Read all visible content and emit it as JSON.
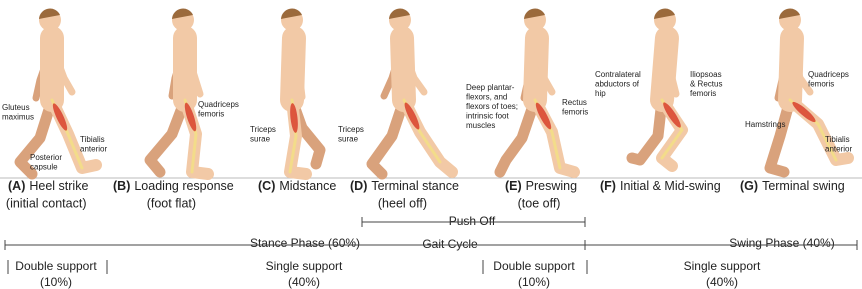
{
  "phases": [
    {
      "letter": "(A)",
      "name": "Heel strike",
      "detail": "(initial contact)",
      "annotations": [
        {
          "lines": [
            "Gluteus",
            "maximus"
          ]
        },
        {
          "lines": [
            "Tibialis",
            "anterior"
          ]
        },
        {
          "lines": [
            "Posterior",
            "capsule"
          ]
        }
      ]
    },
    {
      "letter": "(B)",
      "name": "Loading response",
      "detail": "(foot flat)",
      "annotations": [
        {
          "lines": [
            "Quadriceps",
            "femoris"
          ]
        }
      ]
    },
    {
      "letter": "(C)",
      "name": "Midstance",
      "detail": null,
      "annotations": [
        {
          "lines": [
            "Triceps",
            "surae"
          ]
        }
      ]
    },
    {
      "letter": "(D)",
      "name": "Terminal stance",
      "detail": "(heel off)",
      "annotations": [
        {
          "lines": [
            "Triceps",
            "surae"
          ]
        }
      ]
    },
    {
      "letter": "(E)",
      "name": "Preswing",
      "detail": "(toe off)",
      "annotations": [
        {
          "lines": [
            "Deep plantar-",
            "flexors, and",
            "flexors of toes;",
            "intrinsic foot",
            "muscles"
          ]
        },
        {
          "lines": [
            "Rectus",
            "femoris"
          ]
        }
      ]
    },
    {
      "letter": "(F)",
      "name": "Initial & Mid-swing",
      "detail": null,
      "annotations": [
        {
          "lines": [
            "Contralateral",
            "abductors of",
            "hip"
          ]
        },
        {
          "lines": [
            "Iliopsoas",
            "& Rectus",
            "femoris"
          ]
        }
      ]
    },
    {
      "letter": "(G)",
      "name": "Terminal swing",
      "detail": null,
      "annotations": [
        {
          "lines": [
            "Quadriceps",
            "femoris"
          ]
        },
        {
          "lines": [
            "Hamstrings"
          ]
        },
        {
          "lines": [
            "Tibialis",
            "anterior"
          ]
        }
      ]
    }
  ],
  "timeline": {
    "push_off": "Push Off",
    "stance": "Stance Phase (60%)",
    "gait_cycle": "Gait Cycle",
    "swing": "Swing Phase (40%)",
    "support": [
      {
        "name": "Double support",
        "share": "(10%)"
      },
      {
        "name": "Single support",
        "share": "(40%)"
      },
      {
        "name": "Double support",
        "share": "(10%)"
      },
      {
        "name": "Single support",
        "share": "(40%)"
      }
    ]
  }
}
